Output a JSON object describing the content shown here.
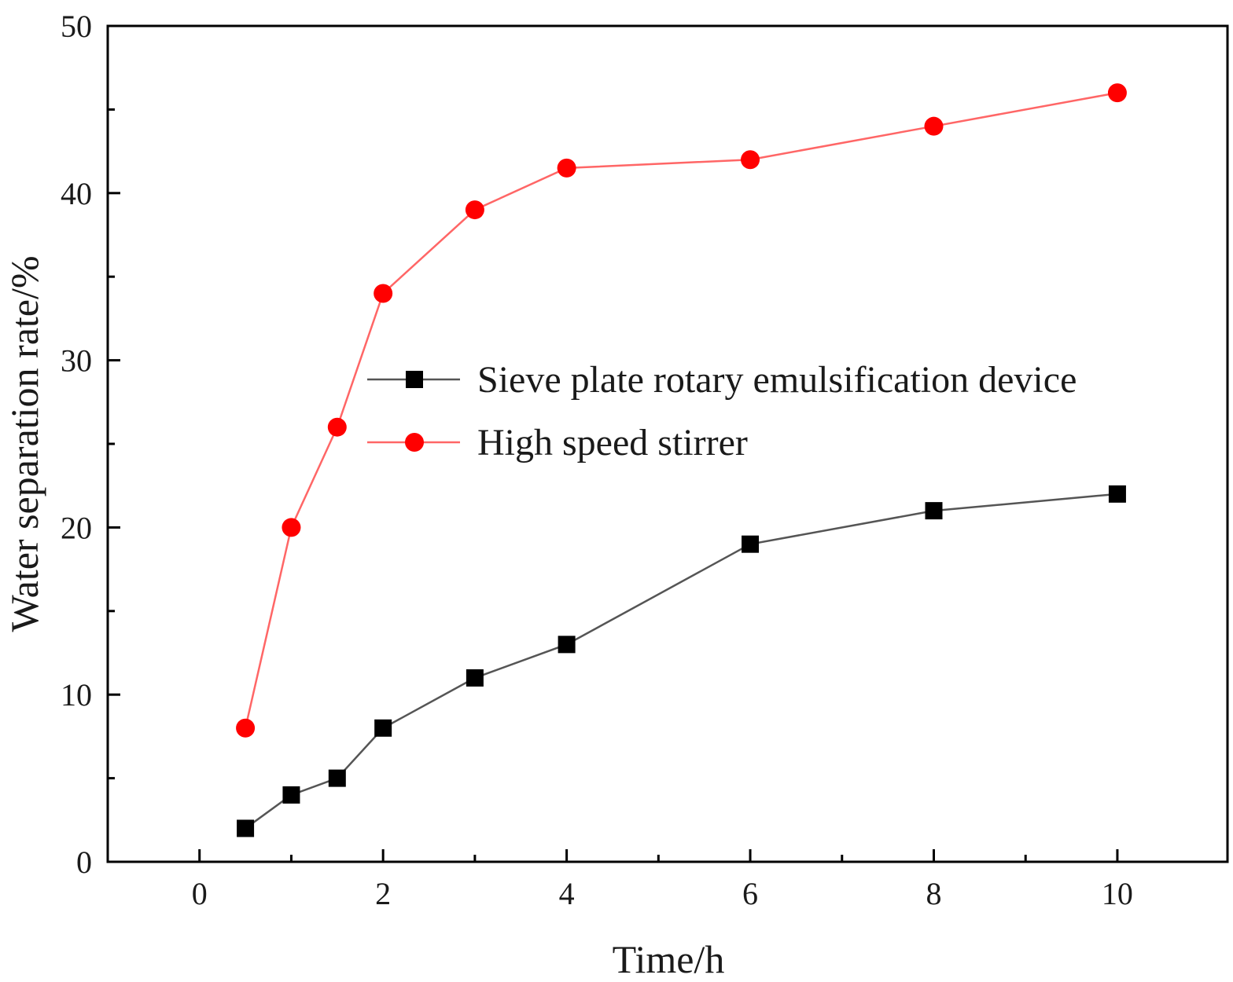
{
  "chart_data": {
    "type": "line",
    "xlabel": "Time/h",
    "ylabel": "Water separation rate/%",
    "xlim": [
      -1,
      11.2
    ],
    "ylim": [
      0,
      50
    ],
    "x_ticks": [
      0,
      2,
      4,
      6,
      8,
      10
    ],
    "x_minor_ticks": [
      1,
      3,
      5,
      7,
      9
    ],
    "y_ticks": [
      0,
      10,
      20,
      30,
      40,
      50
    ],
    "y_minor_ticks": [
      5,
      15,
      25,
      35,
      45
    ],
    "grid": false,
    "legend_position": "center",
    "series": [
      {
        "name": "Sieve plate rotary emulsification device",
        "marker": "square",
        "color": "#000000",
        "line_color": "#555555",
        "x": [
          0.5,
          1,
          1.5,
          2,
          3,
          4,
          6,
          8,
          10
        ],
        "y": [
          2,
          4,
          5,
          8,
          11,
          13,
          19,
          21,
          22
        ]
      },
      {
        "name": "High speed stirrer",
        "marker": "circle",
        "color": "#ff0000",
        "line_color": "#ff6666",
        "x": [
          0.5,
          1,
          1.5,
          2,
          3,
          4,
          6,
          8,
          10
        ],
        "y": [
          8,
          20,
          26,
          34,
          39,
          41.5,
          42,
          44,
          46
        ]
      }
    ]
  }
}
